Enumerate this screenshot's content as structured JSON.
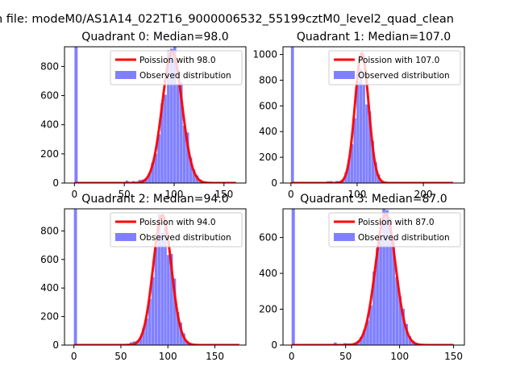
{
  "figure": {
    "suptitle": "n file: modeM0/AS1A14_022T16_9000006532_55199cztM0_level2_quad_clean"
  },
  "colors": {
    "fit_line": "#ff0000",
    "histogram": "#8080ff",
    "axes": "#000000",
    "legend_border": "#cccccc"
  },
  "chart_data": [
    {
      "type": "bar",
      "title": "Quadrant 0: Median=98.0",
      "median": 98.0,
      "xlim": [
        -10,
        172
      ],
      "ylim": [
        0,
        935
      ],
      "xticks": [
        0,
        50,
        100,
        150
      ],
      "yticks": [
        0,
        200,
        400,
        600,
        800
      ],
      "bin_width": 3.2,
      "zero_spike": 935,
      "poisson_peak": 900,
      "hist_scale": 1.0,
      "fit_domain": [
        0,
        162
      ],
      "legend": {
        "position": "top-right",
        "fit_label": "Poission with 98.0",
        "hist_label": "Observed distribution"
      }
    },
    {
      "type": "bar",
      "title": "Quadrant 1: Median=107.0",
      "median": 107.0,
      "xlim": [
        -12,
        262
      ],
      "ylim": [
        0,
        1060
      ],
      "xticks": [
        0,
        100,
        200
      ],
      "yticks": [
        0,
        200,
        400,
        600,
        800,
        1000
      ],
      "bin_width": 4.5,
      "zero_spike": 1060,
      "poisson_peak": 1010,
      "hist_scale": 0.9,
      "fit_domain": [
        0,
        245
      ],
      "legend": {
        "position": "top-right",
        "fit_label": "Poission with 107.0",
        "hist_label": "Observed distribution"
      }
    },
    {
      "type": "bar",
      "title": "Quadrant 2: Median=94.0",
      "median": 94.0,
      "xlim": [
        -10,
        183
      ],
      "ylim": [
        0,
        955
      ],
      "xticks": [
        0,
        50,
        100,
        150
      ],
      "yticks": [
        0,
        200,
        400,
        600,
        800
      ],
      "bin_width": 3.3,
      "zero_spike": 955,
      "poisson_peak": 910,
      "hist_scale": 1.0,
      "fit_domain": [
        0,
        176
      ],
      "legend": {
        "position": "top-right",
        "fit_label": "Poission with 94.0",
        "hist_label": "Observed distribution"
      }
    },
    {
      "type": "bar",
      "title": "Quadrant 3: Median=87.0",
      "median": 87.0,
      "xlim": [
        -8,
        160
      ],
      "ylim": [
        0,
        760
      ],
      "xticks": [
        0,
        50,
        100,
        150
      ],
      "yticks": [
        0,
        200,
        400,
        600
      ],
      "bin_width": 3.0,
      "zero_spike": 760,
      "poisson_peak": 730,
      "hist_scale": 1.0,
      "fit_domain": [
        0,
        150
      ],
      "legend": {
        "position": "top-right",
        "fit_label": "Poission with 87.0",
        "hist_label": "Observed distribution"
      }
    }
  ]
}
